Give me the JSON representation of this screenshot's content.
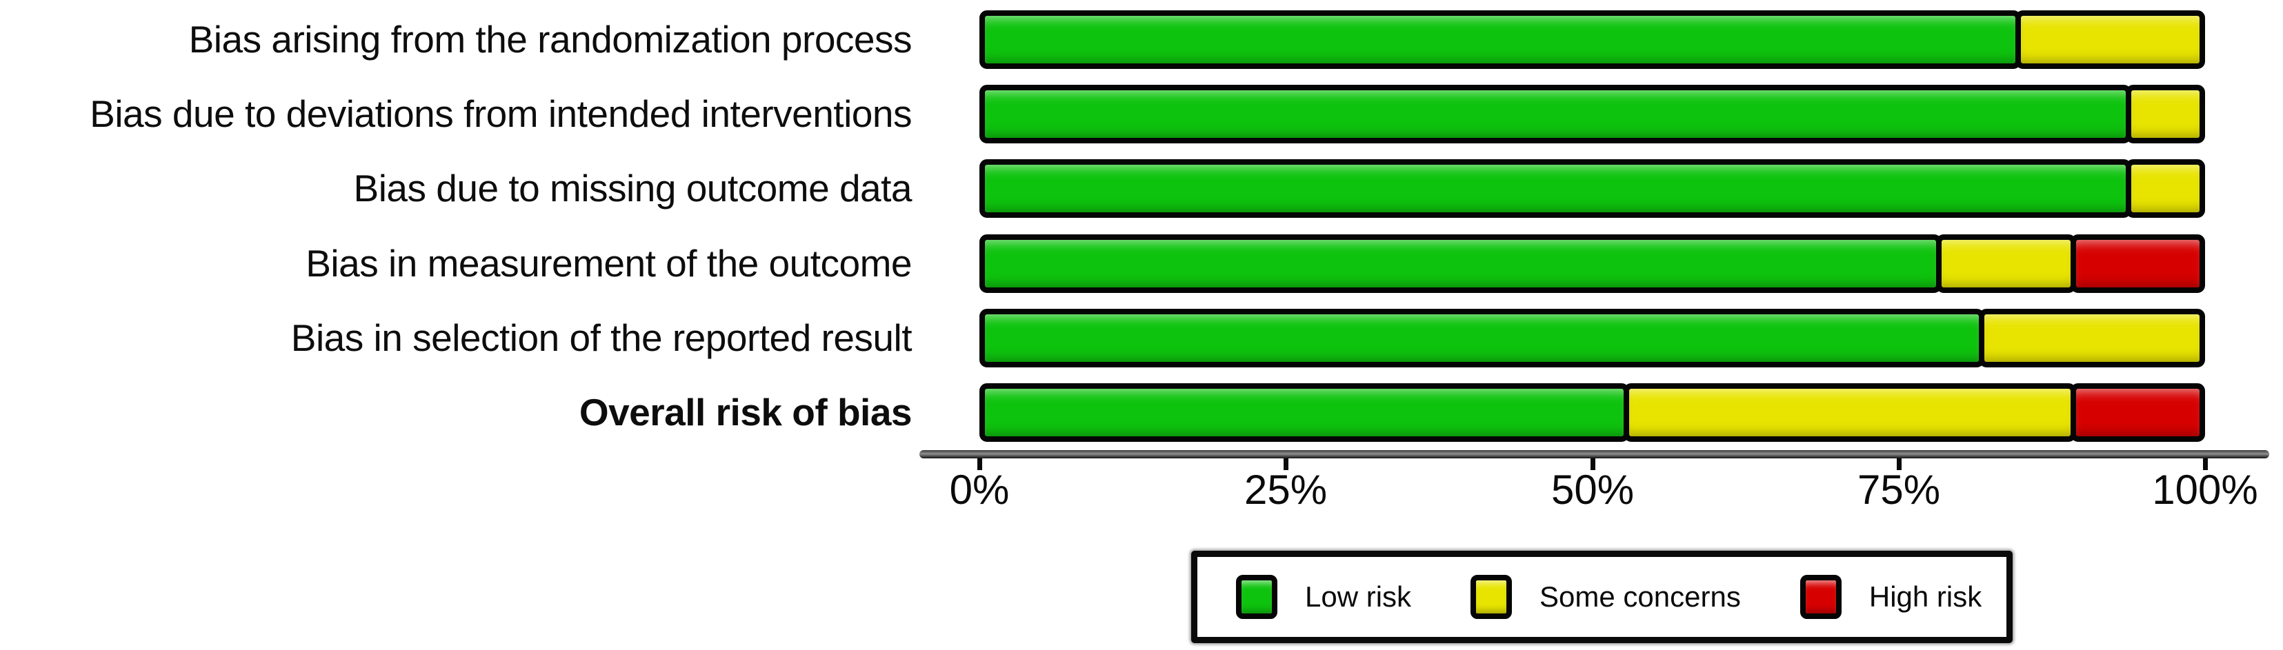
{
  "chart_data": {
    "type": "bar",
    "orientation": "horizontal",
    "stacked": true,
    "title": "",
    "xlabel": "",
    "ylabel": "",
    "unit": "percent of studies",
    "xlim": [
      0,
      100
    ],
    "grid": false,
    "categories": [
      "Bias arising from the randomization process",
      "Bias due to deviations from intended interventions",
      "Bias due to missing outcome data",
      "Bias in measurement of the outcome",
      "Bias in selection of the reported result",
      "Overall risk of bias"
    ],
    "bold_category": "Overall risk of bias",
    "series": [
      {
        "name": "Low risk",
        "color": "#0ec30e",
        "values": [
          85,
          94,
          94,
          78.5,
          82,
          53
        ]
      },
      {
        "name": "Some concerns",
        "color": "#e8e400",
        "values": [
          15,
          6,
          6,
          11,
          18,
          36.5
        ]
      },
      {
        "name": "High risk",
        "color": "#d60000",
        "values": [
          0,
          0,
          0,
          10.5,
          0,
          10.5
        ]
      }
    ],
    "x_ticks": [
      "0%",
      "25%",
      "50%",
      "75%",
      "100%"
    ],
    "legend": {
      "position": "bottom",
      "items": [
        "Low risk",
        "Some concerns",
        "High risk"
      ]
    },
    "outline_color": "#050505"
  }
}
